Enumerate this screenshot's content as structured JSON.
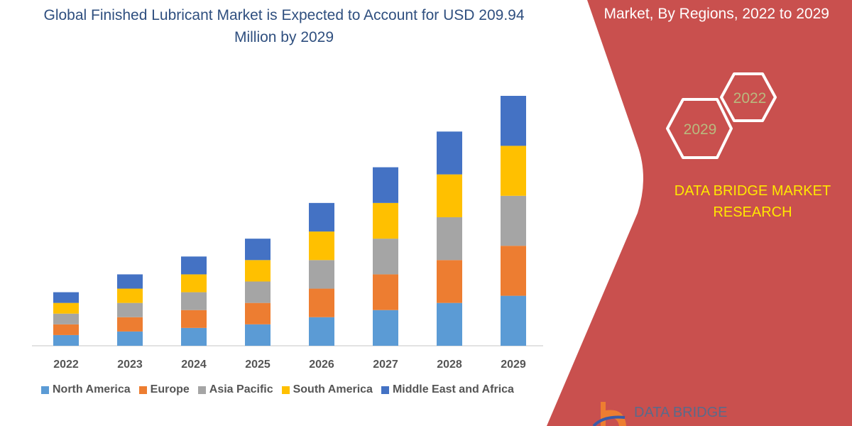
{
  "title": "Global Finished Lubricant Market is Expected to Account for USD 209.94 Million by 2029",
  "side_panel": {
    "title": "Market, By Regions, 2022 to 2029",
    "hex_badges": [
      "2022",
      "2029"
    ],
    "brand": "DATA BRIDGE MARKET RESEARCH",
    "logo_text": "DATA BRIDGE",
    "panel_color": "#c9504e",
    "brand_color": "#ffe800"
  },
  "chart_data": {
    "type": "bar",
    "stacked": true,
    "title": "Global Finished Lubricant Market is Expected to Account for USD 209.94 Million by 2029",
    "xlabel": "",
    "ylabel": "",
    "y_axis_shown": false,
    "grid": false,
    "legend_placement": "bottom",
    "categories": [
      "2022",
      "2023",
      "2024",
      "2025",
      "2026",
      "2027",
      "2028",
      "2029"
    ],
    "series": [
      {
        "name": "North America",
        "color": "#5b9bd5",
        "values": [
          9,
          12,
          15,
          18,
          24,
          30,
          36,
          42
        ]
      },
      {
        "name": "Europe",
        "color": "#ed7d31",
        "values": [
          9,
          12,
          15,
          18,
          24,
          30,
          36,
          42
        ]
      },
      {
        "name": "Asia Pacific",
        "color": "#a5a5a5",
        "values": [
          9,
          12,
          15,
          18,
          24,
          30,
          36,
          42
        ]
      },
      {
        "name": "South America",
        "color": "#ffc000",
        "values": [
          9,
          12,
          15,
          18,
          24,
          30,
          36,
          42
        ]
      },
      {
        "name": "Middle East and Africa",
        "color": "#4472c4",
        "values": [
          9,
          12,
          15,
          18,
          24,
          30,
          36,
          42
        ]
      }
    ],
    "ylim": [
      0,
      210
    ]
  }
}
